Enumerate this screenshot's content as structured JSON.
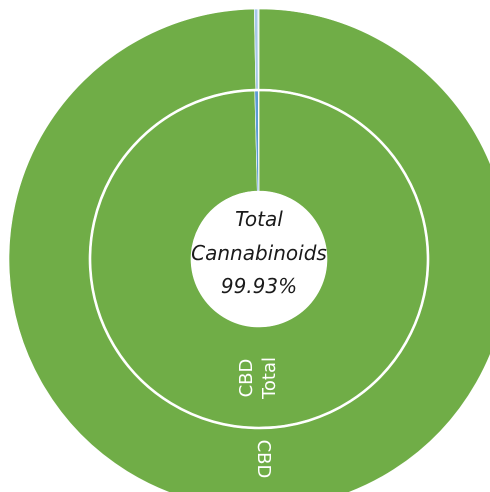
{
  "chart_data": {
    "type": "pie",
    "variant": "nested-donut",
    "center_label": {
      "line1": "Total",
      "line2": "Cannabinoids",
      "line3": "99.93%"
    },
    "rings": [
      {
        "ring": "inner",
        "slices": [
          {
            "label": "Total CBD",
            "value": 99.6,
            "color": "#70AD47",
            "label_line1": "Total",
            "label_line2": "CBD"
          },
          {
            "label": "",
            "value": 0.33,
            "color": "#5B9BD5"
          },
          {
            "label": "",
            "value": 0.07,
            "color": "#DDEBF7"
          }
        ]
      },
      {
        "ring": "outer",
        "slices": [
          {
            "label": "CBD",
            "value": 99.7,
            "color": "#70AD47"
          },
          {
            "label": "",
            "value": 0.23,
            "color": "#A5C8E8"
          },
          {
            "label": "",
            "value": 0.07,
            "color": "#DDEBF7"
          }
        ]
      }
    ],
    "separator_color": "#ffffff",
    "background": "#ffffff"
  }
}
